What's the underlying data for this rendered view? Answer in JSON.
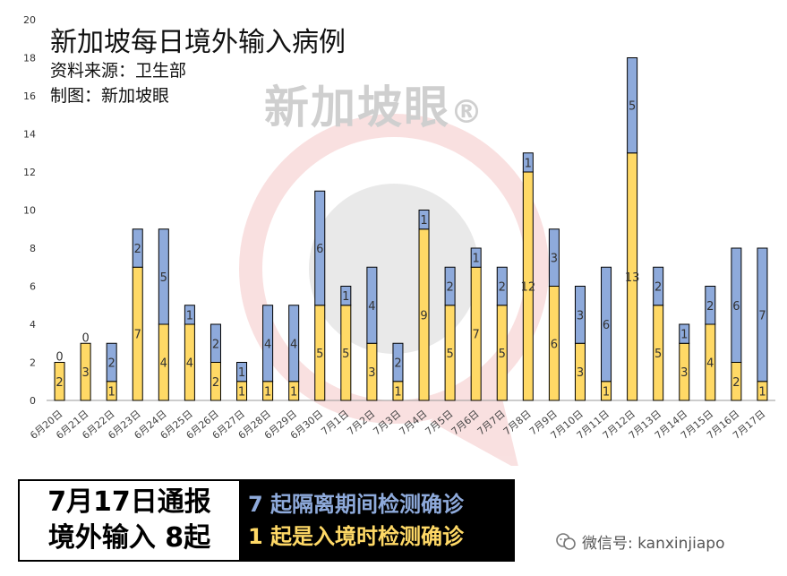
{
  "title": "新加坡每日境外输入病例",
  "source_label": "资料来源：卫生部",
  "maker_label": "制图：新加坡眼",
  "watermark": "新加坡眼",
  "watermark_mark": "®",
  "banner": {
    "line1": "7月17日通报",
    "line2": "境外输入 8起",
    "isolation_text": "7 起隔离期间检测确诊",
    "arrival_text": "1 起是入境时检测确诊"
  },
  "wechat_label": "微信号: kanxinjiapo",
  "colors": {
    "arrival": "#ffd966",
    "isolation": "#8eaadb",
    "bar_border": "#000000",
    "banner_isolation": "#8eaadb",
    "banner_arrival": "#ffd966"
  },
  "chart_data": {
    "type": "bar",
    "stacked": true,
    "categories": [
      "6月20日",
      "6月21日",
      "6月22日",
      "6月23日",
      "6月24日",
      "6月25日",
      "6月26日",
      "6月27日",
      "6月28日",
      "6月29日",
      "6月30日",
      "7月1日",
      "7月2日",
      "7月3日",
      "7月4日",
      "7月5日",
      "7月6日",
      "7月7日",
      "7月8日",
      "7月9日",
      "7月10日",
      "7月11日",
      "7月12日",
      "7月13日",
      "7月14日",
      "7月15日",
      "7月16日",
      "7月17日"
    ],
    "series": [
      {
        "values": [
          2,
          3,
          1,
          7,
          4,
          4,
          2,
          1,
          1,
          1,
          5,
          5,
          3,
          1,
          9,
          5,
          7,
          5,
          12,
          6,
          3,
          1,
          13,
          5,
          3,
          4,
          2,
          1
        ]
      },
      {
        "values": [
          0,
          0,
          2,
          2,
          5,
          1,
          2,
          1,
          4,
          4,
          6,
          1,
          4,
          2,
          1,
          2,
          1,
          2,
          1,
          3,
          3,
          6,
          5,
          2,
          1,
          2,
          6,
          7
        ]
      }
    ],
    "ylim": [
      0,
      20
    ],
    "yticks": [
      0,
      2,
      4,
      6,
      8,
      10,
      12,
      14,
      16,
      18,
      20
    ],
    "grid": false,
    "legend": "none"
  }
}
